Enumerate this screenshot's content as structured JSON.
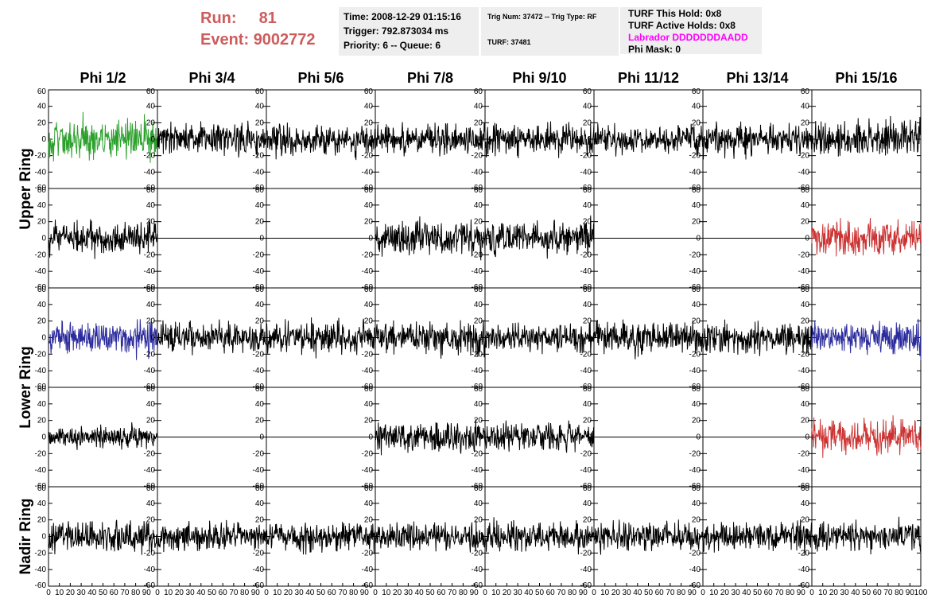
{
  "header": {
    "run_label": "Run:",
    "run_value": "81",
    "event_label": "Event:",
    "event_value": "9002772",
    "time": "Time: 2008-12-29 01:15:16",
    "trigger": "Trigger: 792.873034 ms",
    "priority": "Priority: 6 -- Queue: 6",
    "trig_num": "Trig Num: 37472 -- Trig Type: RF",
    "turf": "TURF: 37481",
    "turf_hold": "TURF This Hold: 0x8",
    "turf_active": "TURF Active Holds: 0x8",
    "labrador": "Labrador DDDDDDDAADD",
    "phi_mask": "Phi Mask: 0"
  },
  "colors": {
    "header_red": "#cd5c5c",
    "labrador_magenta": "#ff00ff",
    "green": "#2ca02c",
    "red": "#cc3333",
    "blue": "#2b2b9e",
    "black": "#000000"
  },
  "chart_data": {
    "type": "line",
    "columns": [
      "Phi 1/2",
      "Phi 3/4",
      "Phi 5/6",
      "Phi 7/8",
      "Phi 9/10",
      "Phi 11/12",
      "Phi 13/14",
      "Phi 15/16"
    ],
    "ring_labels": [
      {
        "text": "Upper Ring",
        "rows": [
          0,
          1
        ]
      },
      {
        "text": "Lower Ring",
        "rows": [
          2,
          3
        ]
      },
      {
        "text": "Nadir Ring",
        "rows": [
          4,
          4
        ]
      }
    ],
    "xlim": [
      0,
      100
    ],
    "ylim": [
      -60,
      60
    ],
    "y_ticks": [
      "-60",
      "-40",
      "-20",
      "0",
      "20",
      "40",
      "60"
    ],
    "x_ticks": [
      "0",
      "10",
      "20",
      "30",
      "40",
      "50",
      "60",
      "70",
      "80",
      "90",
      "100"
    ],
    "grid": false,
    "rows": [
      {
        "colors": [
          "green",
          "black",
          "black",
          "black",
          "black",
          "black",
          "black",
          "black"
        ],
        "amplitude": [
          20,
          15,
          15,
          15,
          15,
          14,
          16,
          18
        ]
      },
      {
        "colors": [
          "black",
          "black",
          "black",
          "black",
          "black",
          "black",
          "black",
          "red"
        ],
        "amplitude": [
          17,
          0,
          0,
          17,
          16,
          0,
          0,
          17
        ]
      },
      {
        "colors": [
          "blue",
          "black",
          "black",
          "black",
          "black",
          "black",
          "black",
          "blue"
        ],
        "amplitude": [
          16,
          15,
          16,
          15,
          14,
          16,
          15,
          16
        ]
      },
      {
        "colors": [
          "black",
          "black",
          "black",
          "black",
          "black",
          "black",
          "black",
          "red"
        ],
        "amplitude": [
          11,
          0,
          0,
          14,
          13,
          0,
          0,
          17
        ]
      },
      {
        "colors": [
          "black",
          "black",
          "black",
          "black",
          "black",
          "black",
          "black",
          "black"
        ],
        "amplitude": [
          14,
          13,
          14,
          14,
          14,
          14,
          14,
          14
        ]
      }
    ]
  }
}
